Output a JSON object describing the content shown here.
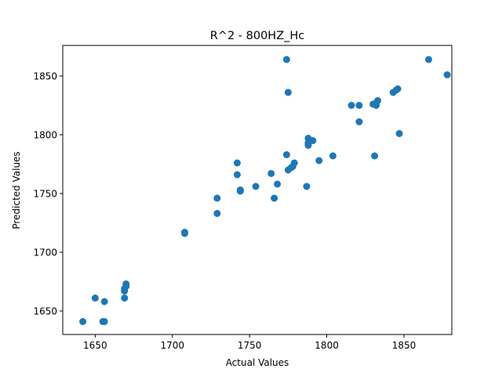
{
  "chart_data": {
    "type": "scatter",
    "title": "R^2 - 800HZ_Hc",
    "xlabel": "Actual Values",
    "ylabel": "Predicted Values",
    "xlim": [
      1629,
      1881
    ],
    "ylim": [
      1630,
      1876
    ],
    "xticks": [
      1650,
      1700,
      1750,
      1800,
      1850
    ],
    "yticks": [
      1650,
      1700,
      1750,
      1800,
      1850
    ],
    "xtick_labels": [
      "1650",
      "1700",
      "1750",
      "1800",
      "1850"
    ],
    "ytick_labels": [
      "1650",
      "1700",
      "1750",
      "1800",
      "1850"
    ],
    "grid": false,
    "marker_color": "#1f77b4",
    "series": [
      {
        "name": "data",
        "points": [
          [
            1642,
            1641
          ],
          [
            1650,
            1661
          ],
          [
            1655,
            1641
          ],
          [
            1656,
            1641
          ],
          [
            1656,
            1658
          ],
          [
            1669,
            1661
          ],
          [
            1669,
            1667
          ],
          [
            1669,
            1669
          ],
          [
            1670,
            1671
          ],
          [
            1670,
            1673
          ],
          [
            1708,
            1716
          ],
          [
            1708,
            1717
          ],
          [
            1729,
            1746
          ],
          [
            1729,
            1733
          ],
          [
            1742,
            1776
          ],
          [
            1742,
            1766
          ],
          [
            1744,
            1753
          ],
          [
            1744,
            1752
          ],
          [
            1754,
            1756
          ],
          [
            1764,
            1767
          ],
          [
            1766,
            1746
          ],
          [
            1768,
            1758
          ],
          [
            1774,
            1864
          ],
          [
            1774,
            1783
          ],
          [
            1775,
            1836
          ],
          [
            1775,
            1770
          ],
          [
            1777,
            1772
          ],
          [
            1778,
            1773
          ],
          [
            1779,
            1776
          ],
          [
            1787,
            1756
          ],
          [
            1788,
            1797
          ],
          [
            1788,
            1793
          ],
          [
            1788,
            1791
          ],
          [
            1791,
            1795
          ],
          [
            1795,
            1778
          ],
          [
            1804,
            1782
          ],
          [
            1816,
            1825
          ],
          [
            1821,
            1825
          ],
          [
            1821,
            1811
          ],
          [
            1830,
            1826
          ],
          [
            1831,
            1782
          ],
          [
            1832,
            1825
          ],
          [
            1832,
            1827
          ],
          [
            1833,
            1829
          ],
          [
            1843,
            1836
          ],
          [
            1845,
            1838
          ],
          [
            1846,
            1839
          ],
          [
            1847,
            1801
          ],
          [
            1866,
            1864
          ],
          [
            1878,
            1851
          ]
        ]
      }
    ]
  }
}
